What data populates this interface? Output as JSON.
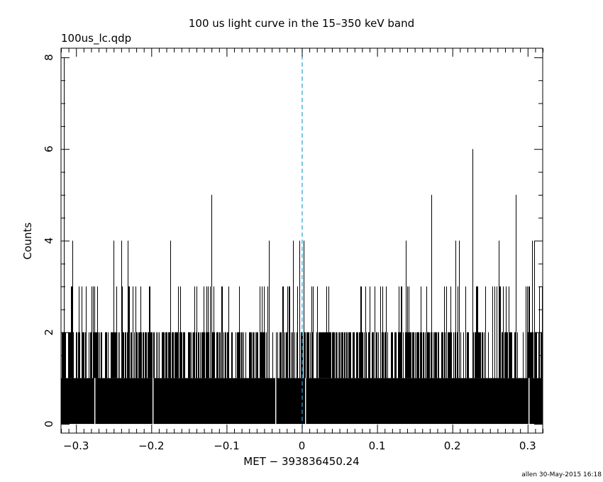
{
  "chart_data": {
    "type": "bar",
    "title": "100 us light curve in the 15–350 keV band",
    "subtitle": "100us_lc.qdp",
    "xlabel": "MET − 393836450.24",
    "ylabel": "Counts",
    "xlim": [
      -0.32,
      0.32
    ],
    "ylim": [
      -0.2,
      8.2
    ],
    "bin_width": 0.0001,
    "x_ticks": [
      -0.3,
      -0.2,
      -0.1,
      0,
      0.1,
      0.2,
      0.3
    ],
    "x_tick_labels": [
      "−0.3",
      "−0.2",
      "−0.1",
      "0",
      "0.1",
      "0.2",
      "0.3"
    ],
    "y_ticks": [
      0,
      2,
      4,
      6,
      8
    ],
    "y_tick_labels": [
      "0",
      "2",
      "4",
      "6",
      "8"
    ],
    "vline": {
      "x": 0,
      "color": "#2a9fd6",
      "style": "dashed"
    },
    "grid": false,
    "notable_bins": [
      {
        "x": -0.316,
        "y": 8
      },
      {
        "x": -0.12,
        "y": 5
      },
      {
        "x": 0.172,
        "y": 5
      },
      {
        "x": 0.227,
        "y": 6
      },
      {
        "x": 0.284,
        "y": 5
      },
      {
        "x": -0.305,
        "y": 4
      },
      {
        "x": -0.25,
        "y": 4
      },
      {
        "x": -0.24,
        "y": 4
      },
      {
        "x": -0.231,
        "y": 4
      },
      {
        "x": -0.175,
        "y": 4
      },
      {
        "x": -0.044,
        "y": 4
      },
      {
        "x": -0.012,
        "y": 4
      },
      {
        "x": -0.003,
        "y": 4
      },
      {
        "x": 0.002,
        "y": 4
      },
      {
        "x": 0.138,
        "y": 4
      },
      {
        "x": 0.204,
        "y": 4
      },
      {
        "x": 0.209,
        "y": 4
      },
      {
        "x": 0.262,
        "y": 4
      },
      {
        "x": 0.306,
        "y": 4
      },
      {
        "x": 0.309,
        "y": 4
      }
    ],
    "typical_range": [
      0,
      3
    ]
  },
  "footer": {
    "credit": "allen 30-May-2015 16:18"
  },
  "colors": {
    "bars": "#000000",
    "vline": "#2a9fd6",
    "background": "#ffffff"
  }
}
